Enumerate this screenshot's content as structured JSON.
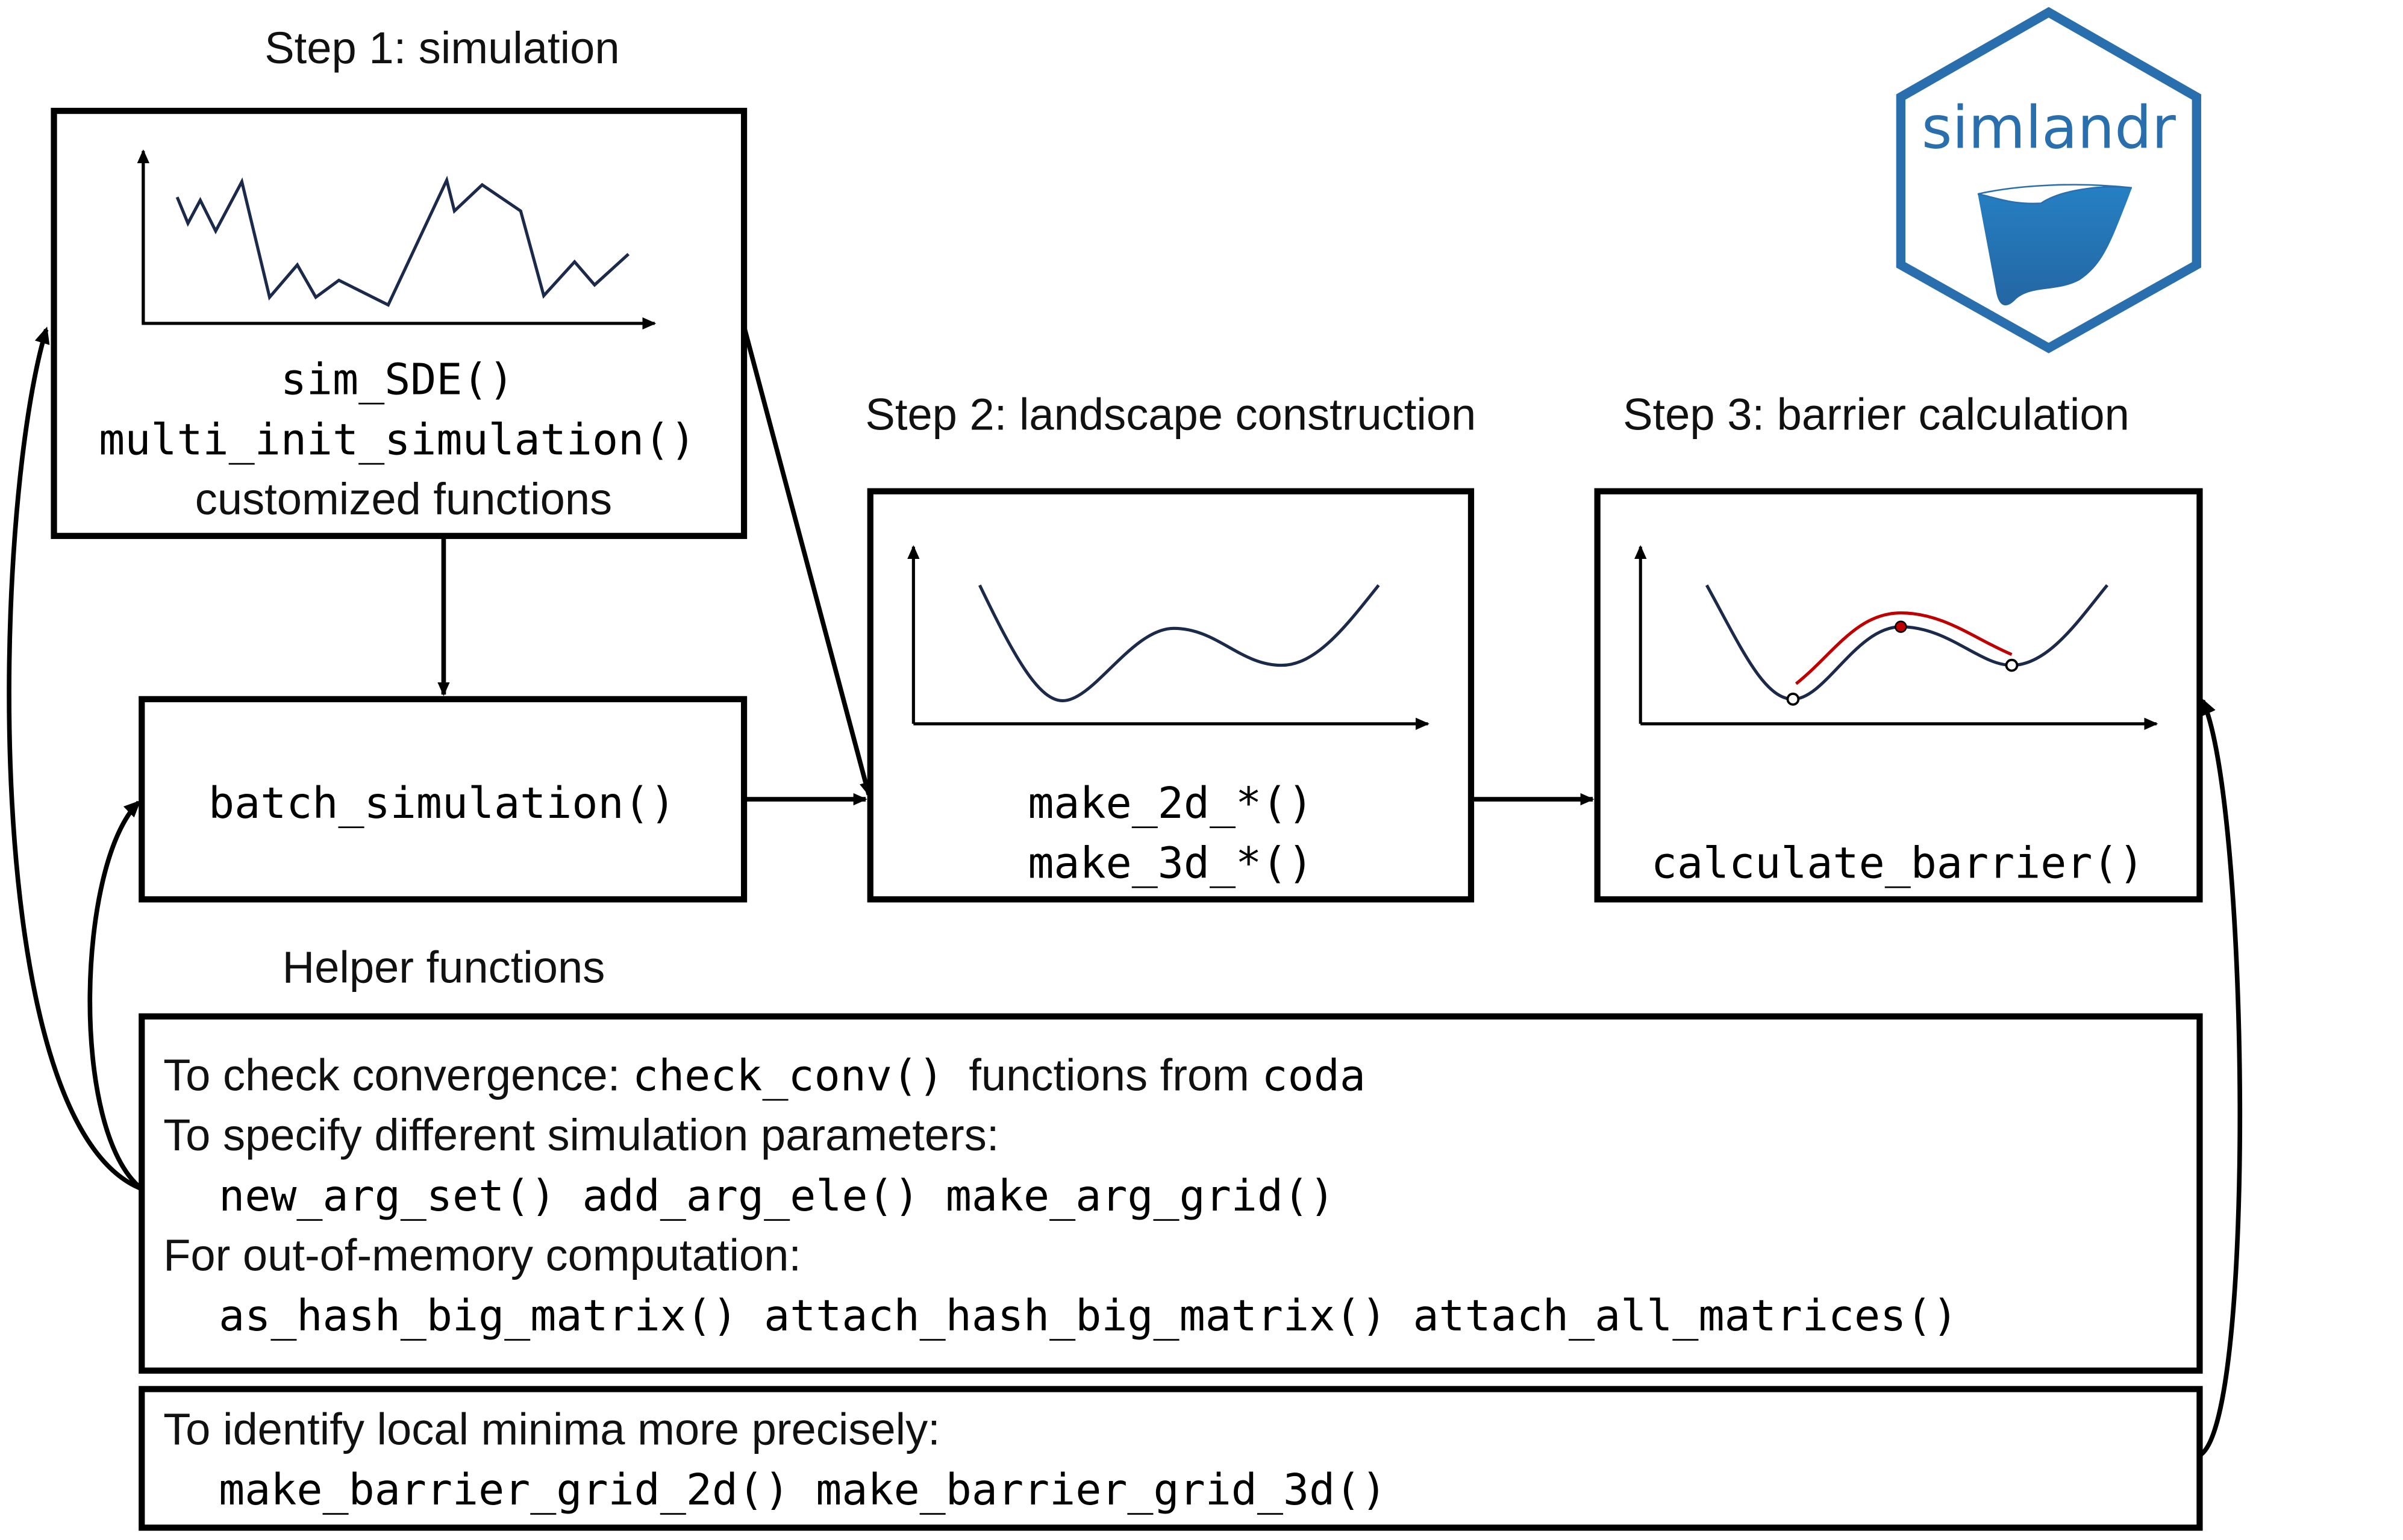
{
  "logo": {
    "text": "simlandr",
    "color": "#2a6fad"
  },
  "step1": {
    "title": "Step 1: simulation",
    "functions": [
      "sim_SDE()",
      "multi_init_simulation()"
    ],
    "note": "customized functions"
  },
  "batch": {
    "function": "batch_simulation()"
  },
  "step2": {
    "title": "Step 2: landscape construction",
    "functions": [
      "make_2d_*()",
      "make_3d_*()"
    ]
  },
  "step3": {
    "title": "Step 3: barrier calculation",
    "function": "calculate_barrier()",
    "highlight_color": "#c00000"
  },
  "helpers": {
    "title": "Helper functions",
    "convergence_label": "To check convergence: ",
    "convergence_fn": "check_conv()",
    "convergence_mid": "  functions from ",
    "convergence_pkg": "coda",
    "params_label": "To specify different simulation parameters:",
    "params_fns": "new_arg_set() add_arg_ele() make_arg_grid()",
    "memory_label": "For out-of-memory computation:",
    "memory_fns": "as_hash_big_matrix() attach_hash_big_matrix() attach_all_matrices()"
  },
  "minima": {
    "label": "To identify local minima more precisely:",
    "fns": "make_barrier_grid_2d() make_barrier_grid_3d()"
  }
}
